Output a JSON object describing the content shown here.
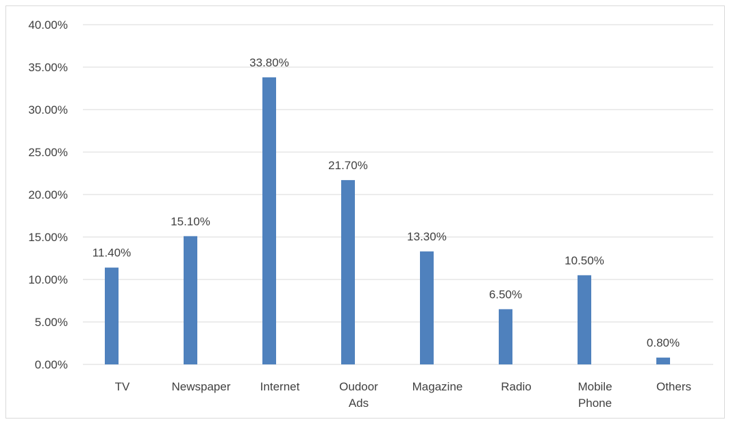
{
  "chart_data": {
    "type": "bar",
    "categories": [
      "TV",
      "Newspaper",
      "Internet",
      "Oudoor Ads",
      "Magazine",
      "Radio",
      "Mobile Phone",
      "Others"
    ],
    "category_lines": [
      [
        "TV"
      ],
      [
        "Newspaper"
      ],
      [
        "Internet"
      ],
      [
        "Oudoor",
        "Ads"
      ],
      [
        "Magazine"
      ],
      [
        "Radio"
      ],
      [
        "Mobile",
        "Phone"
      ],
      [
        "Others"
      ]
    ],
    "values": [
      11.4,
      15.1,
      33.8,
      21.7,
      13.3,
      6.5,
      10.5,
      0.8
    ],
    "data_labels": [
      "11.40%",
      "15.10%",
      "33.80%",
      "21.70%",
      "13.30%",
      "6.50%",
      "10.50%",
      "0.80%"
    ],
    "y_ticks": [
      "0.00%",
      "5.00%",
      "10.00%",
      "15.00%",
      "20.00%",
      "25.00%",
      "30.00%",
      "35.00%",
      "40.00%"
    ],
    "ylim": [
      0,
      40
    ],
    "grid": true,
    "bar_color": "#4f81bd",
    "grid_color": "#d9d9d9",
    "text_color": "#404040"
  }
}
